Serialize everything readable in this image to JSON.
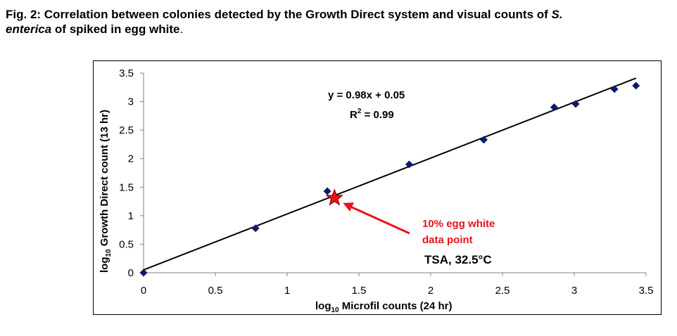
{
  "caption": {
    "lead": "Fig. 2: Correlation between colonies detected by the Growth Direct system and visual counts of ",
    "species_genus": "S.",
    "species_name": "enterica",
    "tail": " of spiked in egg white",
    "period": "."
  },
  "chart_data": {
    "type": "scatter",
    "xlabel_prefix": "log",
    "xlabel_sub": "10",
    "xlabel_suffix": " Microfil counts (24 hr)",
    "ylabel_prefix": "log",
    "ylabel_sub": "10",
    "ylabel_suffix": " Growth Direct count (13 hr)",
    "xlim": [
      0,
      3.5
    ],
    "ylim": [
      0,
      3.5
    ],
    "x_ticks": [
      "0",
      "0.5",
      "1",
      "1.5",
      "2",
      "2.5",
      "3",
      "3.5"
    ],
    "y_ticks": [
      "0",
      "0.5",
      "1",
      "1.5",
      "2",
      "2.5",
      "3",
      "3.5"
    ],
    "points": [
      {
        "x": 0.0,
        "y": 0.0
      },
      {
        "x": 0.78,
        "y": 0.78
      },
      {
        "x": 1.28,
        "y": 1.43
      },
      {
        "x": 1.85,
        "y": 1.9
      },
      {
        "x": 2.37,
        "y": 2.33
      },
      {
        "x": 2.86,
        "y": 2.9
      },
      {
        "x": 3.01,
        "y": 2.96
      },
      {
        "x": 3.28,
        "y": 3.22
      },
      {
        "x": 3.43,
        "y": 3.28
      }
    ],
    "highlight_point": {
      "x": 1.33,
      "y": 1.31,
      "label_line1": "10% egg white",
      "label_line2": "data point"
    },
    "trendline": {
      "slope": 0.98,
      "intercept": 0.05,
      "x_range": [
        0,
        3.43
      ]
    },
    "equation": "y = 0.98x + 0.05",
    "r2_prefix": "R",
    "r2_sup": "2",
    "r2_suffix": " = 0.99",
    "condition_label": "TSA, 32.5°C",
    "grid": false,
    "colors": {
      "marker": "#0a1a6e",
      "highlight": "#e8141c",
      "line": "#000000"
    }
  }
}
